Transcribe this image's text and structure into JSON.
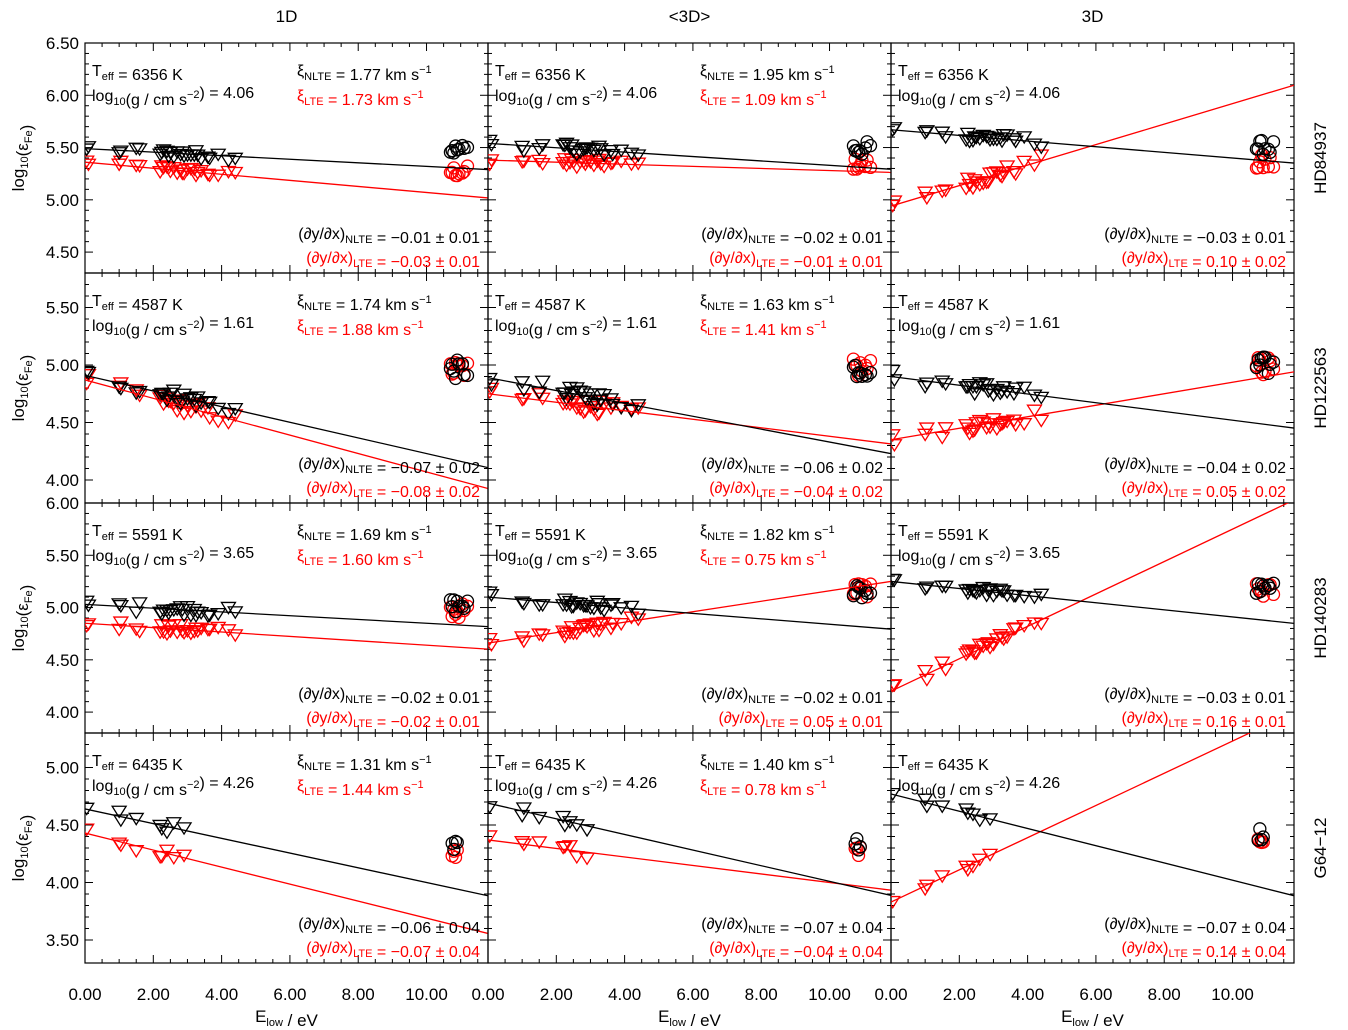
{
  "chart_data": {
    "type": "scatter",
    "columns": [
      "1D",
      "<3D>",
      "3D"
    ],
    "stars": [
      "HD84937",
      "HD122563",
      "HD140283",
      "G64−12"
    ],
    "xlabel_base": "E",
    "xlabel_sub": "low",
    "xlabel_tail": " / eV",
    "ylabel_base": "log",
    "ylabel_sub": "10",
    "ylabel_open": "(ε",
    "ylabel_sub2": "Fe",
    "ylabel_close": ")",
    "xlim": [
      0,
      11.8
    ],
    "xticks": [
      "0.00",
      "2.00",
      "4.00",
      "6.00",
      "8.00",
      "10.00"
    ],
    "xtick_values": [
      0,
      2,
      4,
      6,
      8,
      10
    ],
    "colors": {
      "nlte": "#000000",
      "lte": "#ff0000"
    },
    "rows": [
      {
        "star": "HD84937",
        "ylim": [
          4.3,
          6.5
        ],
        "yticks": [
          "4.50",
          "5.00",
          "5.50",
          "6.00",
          "6.50"
        ],
        "ytick_values": [
          4.5,
          5.0,
          5.5,
          6.0,
          6.5
        ],
        "teff": "6356 K",
        "logg": "4.06",
        "panels": [
          {
            "xi_nlte": "1.77 km s",
            "xi_lte": "1.73 km s",
            "slope_nlte": "−0.01 ± 0.01",
            "slope_lte": "−0.03 ± 0.01",
            "nlte": {
              "mean": 5.48,
              "fit": [
                5.49,
                -0.017
              ],
              "spread": 0.04
            },
            "lte": {
              "mean": 5.27,
              "fit": [
                5.36,
                -0.029
              ],
              "spread": 0.04
            }
          },
          {
            "xi_nlte": "1.95 km s",
            "xi_lte": "1.09 km s",
            "slope_nlte": "−0.02 ± 0.01",
            "slope_lte": "−0.01 ± 0.01",
            "nlte": {
              "mean": 5.49,
              "fit": [
                5.54,
                -0.021
              ],
              "spread": 0.05
            },
            "lte": {
              "mean": 5.34,
              "fit": [
                5.38,
                -0.01
              ],
              "spread": 0.04
            }
          },
          {
            "xi_nlte": "",
            "xi_lte": "",
            "slope_nlte": "−0.03 ± 0.01",
            "slope_lte": "0.10 ± 0.02",
            "nlte": {
              "mean": 5.5,
              "fit": [
                5.67,
                -0.027
              ],
              "spread": 0.05
            },
            "lte": {
              "mean": 5.35,
              "fit": [
                4.94,
                0.098
              ],
              "spread": 0.06
            }
          }
        ]
      },
      {
        "star": "HD122563",
        "ylim": [
          3.8,
          5.8
        ],
        "yticks": [
          "4.00",
          "4.50",
          "5.00",
          "5.50"
        ],
        "ytick_values": [
          4.0,
          4.5,
          5.0,
          5.5
        ],
        "teff": "4587 K",
        "logg": "1.61",
        "panels": [
          {
            "xi_nlte": "1.74 km s",
            "xi_lte": "1.88 km s",
            "slope_nlte": "−0.07 ± 0.02",
            "slope_lte": "−0.08 ± 0.02",
            "nlte": {
              "mean": 4.96,
              "fit": [
                4.91,
                -0.068
              ],
              "spread": 0.06
            },
            "lte": {
              "mean": 4.96,
              "fit": [
                4.87,
                -0.08
              ],
              "spread": 0.06
            }
          },
          {
            "xi_nlte": "1.63 km s",
            "xi_lte": "1.41 km s",
            "slope_nlte": "−0.06 ± 0.02",
            "slope_lte": "−0.04 ± 0.02",
            "nlte": {
              "mean": 4.97,
              "fit": [
                4.89,
                -0.056
              ],
              "spread": 0.06
            },
            "lte": {
              "mean": 4.97,
              "fit": [
                4.75,
                -0.037
              ],
              "spread": 0.06
            }
          },
          {
            "xi_nlte": "",
            "xi_lte": "",
            "slope_nlte": "−0.04 ± 0.02",
            "slope_lte": "0.05 ± 0.02",
            "nlte": {
              "mean": 4.99,
              "fit": [
                4.9,
                -0.038
              ],
              "spread": 0.06
            },
            "lte": {
              "mean": 4.99,
              "fit": [
                4.35,
                0.05
              ],
              "spread": 0.06
            }
          }
        ]
      },
      {
        "star": "HD140283",
        "ylim": [
          3.8,
          6.0
        ],
        "yticks": [
          "4.00",
          "4.50",
          "5.00",
          "5.50",
          "6.00"
        ],
        "ytick_values": [
          4.0,
          4.5,
          5.0,
          5.5,
          6.0
        ],
        "teff": "5591 K",
        "logg": "3.65",
        "panels": [
          {
            "xi_nlte": "1.69 km s",
            "xi_lte": "1.60 km s",
            "slope_nlte": "−0.02 ± 0.01",
            "slope_lte": "−0.02 ± 0.01",
            "nlte": {
              "mean": 5.02,
              "fit": [
                5.03,
                -0.018
              ],
              "spread": 0.05
            },
            "lte": {
              "mean": 4.97,
              "fit": [
                4.85,
                -0.021
              ],
              "spread": 0.05
            }
          },
          {
            "xi_nlte": "1.82 km s",
            "xi_lte": "0.75 km s",
            "slope_nlte": "−0.02 ± 0.01",
            "slope_lte": "0.05 ± 0.01",
            "nlte": {
              "mean": 5.14,
              "fit": [
                5.1,
                -0.026
              ],
              "spread": 0.05
            },
            "lte": {
              "mean": 5.17,
              "fit": [
                4.66,
                0.05
              ],
              "spread": 0.05
            }
          },
          {
            "xi_nlte": "",
            "xi_lte": "",
            "slope_nlte": "−0.03 ± 0.01",
            "slope_lte": "0.16 ± 0.01",
            "nlte": {
              "mean": 5.18,
              "fit": [
                5.25,
                -0.034
              ],
              "spread": 0.04
            },
            "lte": {
              "mean": 5.16,
              "fit": [
                4.2,
                0.155
              ],
              "spread": 0.05
            }
          }
        ]
      },
      {
        "star": "G64−12",
        "ylim": [
          3.3,
          5.3
        ],
        "yticks": [
          "3.50",
          "4.00",
          "4.50",
          "5.00"
        ],
        "ytick_values": [
          3.5,
          4.0,
          4.5,
          5.0
        ],
        "teff": "6435 K",
        "logg": "4.26",
        "panels": [
          {
            "xi_nlte": "1.31 km s",
            "xi_lte": "1.44 km s",
            "slope_nlte": "−0.06 ± 0.04",
            "slope_lte": "−0.07 ± 0.04",
            "nlte": {
              "mean": 4.3,
              "fit": [
                4.64,
                -0.064
              ],
              "spread": 0.05
            },
            "lte": {
              "mean": 4.25,
              "fit": [
                4.43,
                -0.074
              ],
              "spread": 0.05
            }
          },
          {
            "xi_nlte": "1.40 km s",
            "xi_lte": "0.78 km s",
            "slope_nlte": "−0.07 ± 0.04",
            "slope_lte": "−0.04 ± 0.04",
            "nlte": {
              "mean": 4.35,
              "fit": [
                4.69,
                -0.068
              ],
              "spread": 0.05
            },
            "lte": {
              "mean": 4.3,
              "fit": [
                4.37,
                -0.037
              ],
              "spread": 0.05
            }
          },
          {
            "xi_nlte": "",
            "xi_lte": "",
            "slope_nlte": "−0.07 ± 0.04",
            "slope_lte": "0.14 ± 0.04",
            "nlte": {
              "mean": 4.42,
              "fit": [
                4.77,
                -0.075
              ],
              "spread": 0.04
            },
            "lte": {
              "mean": 4.38,
              "fit": [
                3.83,
                0.14
              ],
              "spread": 0.05
            }
          }
        ]
      }
    ]
  }
}
